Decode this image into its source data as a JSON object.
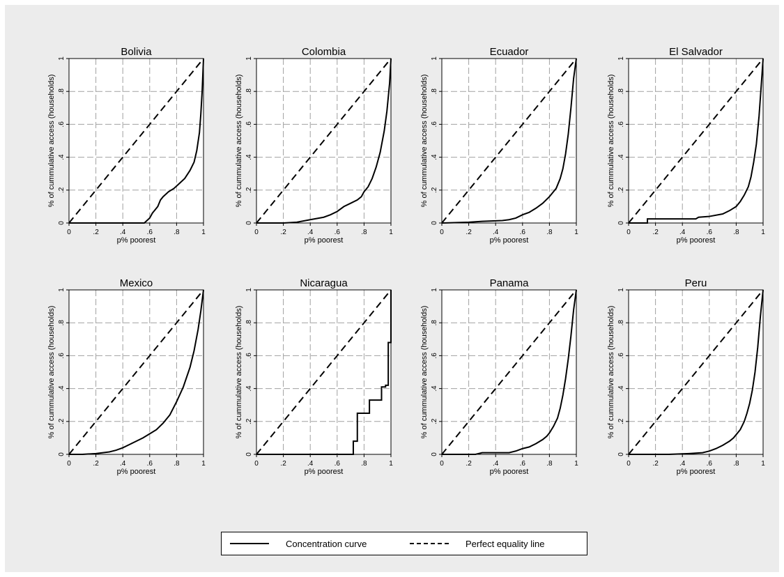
{
  "colors": {
    "frame": "#ececec",
    "plot_bg": "#ffffff",
    "line": "#000000",
    "grid": "#a0a0a0"
  },
  "legend": {
    "items": [
      {
        "label": "Concentration curve",
        "style": "solid"
      },
      {
        "label": "Perfect equality line",
        "style": "dashed"
      }
    ]
  },
  "chart_data": [
    {
      "type": "line",
      "title": "Bolivia",
      "xlabel": "p% poorest",
      "ylabel": "% of cummulative access (households)",
      "xlim": [
        0,
        1
      ],
      "ylim": [
        0,
        1
      ],
      "grid": true,
      "xticks": [
        "0",
        ".2",
        ".4",
        ".6",
        ".8",
        "1"
      ],
      "yticks": [
        "0",
        ".2",
        ".4",
        ".6",
        ".8",
        "1"
      ],
      "series": [
        {
          "style": "dashed",
          "x": [
            0,
            1
          ],
          "y": [
            0,
            1
          ]
        },
        {
          "style": "solid",
          "step": false,
          "x": [
            0,
            0.56,
            0.6,
            0.62,
            0.64,
            0.66,
            0.68,
            0.7,
            0.74,
            0.78,
            0.82,
            0.86,
            0.9,
            0.93,
            0.95,
            0.97,
            0.98,
            0.99,
            1.0
          ],
          "y": [
            0,
            0,
            0.03,
            0.06,
            0.08,
            0.1,
            0.14,
            0.16,
            0.19,
            0.21,
            0.24,
            0.27,
            0.32,
            0.37,
            0.44,
            0.55,
            0.66,
            0.8,
            1.0
          ]
        }
      ]
    },
    {
      "type": "line",
      "title": "Colombia",
      "xlabel": "p% poorest",
      "ylabel": "% of cummulative access (households)",
      "xlim": [
        0,
        1
      ],
      "ylim": [
        0,
        1
      ],
      "grid": true,
      "xticks": [
        "0",
        ".2",
        ".4",
        ".6",
        ".8",
        "1"
      ],
      "yticks": [
        "0",
        ".2",
        ".4",
        ".6",
        ".8",
        "1"
      ],
      "series": [
        {
          "style": "dashed",
          "x": [
            0,
            1
          ],
          "y": [
            0,
            1
          ]
        },
        {
          "style": "solid",
          "step": false,
          "x": [
            0,
            0.2,
            0.3,
            0.4,
            0.5,
            0.55,
            0.6,
            0.65,
            0.7,
            0.75,
            0.78,
            0.8,
            0.83,
            0.86,
            0.89,
            0.92,
            0.95,
            0.97,
            0.99,
            1.0
          ],
          "y": [
            0,
            0,
            0.005,
            0.02,
            0.035,
            0.05,
            0.07,
            0.1,
            0.12,
            0.14,
            0.16,
            0.19,
            0.22,
            0.27,
            0.34,
            0.43,
            0.56,
            0.68,
            0.85,
            1.0
          ]
        }
      ]
    },
    {
      "type": "line",
      "title": "Ecuador",
      "xlabel": "p% poorest",
      "ylabel": "% of cummulative access (households)",
      "xlim": [
        0,
        1
      ],
      "ylim": [
        0,
        1
      ],
      "grid": true,
      "xticks": [
        "0",
        ".2",
        ".4",
        ".6",
        ".8",
        "1"
      ],
      "yticks": [
        "0",
        ".2",
        ".4",
        ".6",
        ".8",
        "1"
      ],
      "series": [
        {
          "style": "dashed",
          "x": [
            0,
            1
          ],
          "y": [
            0,
            1
          ]
        },
        {
          "style": "solid",
          "step": false,
          "x": [
            0,
            0.2,
            0.3,
            0.45,
            0.5,
            0.55,
            0.6,
            0.65,
            0.7,
            0.75,
            0.8,
            0.83,
            0.85,
            0.88,
            0.9,
            0.92,
            0.94,
            0.96,
            0.98,
            1.0
          ],
          "y": [
            0,
            0.005,
            0.01,
            0.015,
            0.02,
            0.03,
            0.05,
            0.065,
            0.09,
            0.12,
            0.16,
            0.19,
            0.21,
            0.27,
            0.33,
            0.42,
            0.54,
            0.7,
            0.88,
            1.0
          ]
        }
      ]
    },
    {
      "type": "line",
      "title": "El Salvador",
      "xlabel": "p% poorest",
      "ylabel": "% of cummulative access (households)",
      "xlim": [
        0,
        1
      ],
      "ylim": [
        0,
        1
      ],
      "grid": true,
      "xticks": [
        "0",
        ".2",
        ".4",
        ".6",
        ".8",
        "1"
      ],
      "yticks": [
        "0",
        ".2",
        ".4",
        ".6",
        ".8",
        "1"
      ],
      "series": [
        {
          "style": "dashed",
          "x": [
            0,
            1
          ],
          "y": [
            0,
            1
          ]
        },
        {
          "style": "solid",
          "step": false,
          "x": [
            0,
            0.14,
            0.14,
            0.5,
            0.52,
            0.6,
            0.7,
            0.75,
            0.8,
            0.83,
            0.86,
            0.89,
            0.91,
            0.93,
            0.95,
            0.97,
            0.99,
            1.0
          ],
          "y": [
            0,
            0,
            0.025,
            0.025,
            0.035,
            0.04,
            0.055,
            0.075,
            0.1,
            0.13,
            0.17,
            0.22,
            0.28,
            0.37,
            0.48,
            0.65,
            0.88,
            1.0
          ]
        }
      ]
    },
    {
      "type": "line",
      "title": "Mexico",
      "xlabel": "p% poorest",
      "ylabel": "% of cummulative access (households)",
      "xlim": [
        0,
        1
      ],
      "ylim": [
        0,
        1
      ],
      "grid": true,
      "xticks": [
        "0",
        ".2",
        ".4",
        ".6",
        ".8",
        "1"
      ],
      "yticks": [
        "0",
        ".2",
        ".4",
        ".6",
        ".8",
        "1"
      ],
      "series": [
        {
          "style": "dashed",
          "x": [
            0,
            1
          ],
          "y": [
            0,
            1
          ]
        },
        {
          "style": "solid",
          "step": false,
          "x": [
            0,
            0.1,
            0.2,
            0.3,
            0.35,
            0.4,
            0.45,
            0.5,
            0.55,
            0.6,
            0.65,
            0.7,
            0.75,
            0.8,
            0.85,
            0.9,
            0.93,
            0.96,
            0.98,
            1.0
          ],
          "y": [
            0,
            0,
            0.005,
            0.015,
            0.025,
            0.04,
            0.06,
            0.08,
            0.1,
            0.125,
            0.15,
            0.19,
            0.24,
            0.32,
            0.41,
            0.53,
            0.63,
            0.76,
            0.87,
            1.0
          ]
        }
      ]
    },
    {
      "type": "line",
      "title": "Nicaragua",
      "xlabel": "p% poorest",
      "ylabel": "% of cummulative access (households)",
      "xlim": [
        0,
        1
      ],
      "ylim": [
        0,
        1
      ],
      "grid": true,
      "xticks": [
        "0",
        ".2",
        ".4",
        ".6",
        ".8",
        "1"
      ],
      "yticks": [
        "0",
        ".2",
        ".4",
        ".6",
        ".8",
        "1"
      ],
      "series": [
        {
          "style": "dashed",
          "x": [
            0,
            1
          ],
          "y": [
            0,
            1
          ]
        },
        {
          "style": "solid",
          "step": true,
          "x": [
            0,
            0.72,
            0.75,
            0.8,
            0.84,
            0.93,
            0.96,
            0.98,
            1.0
          ],
          "y": [
            0,
            0.08,
            0.25,
            0.25,
            0.33,
            0.41,
            0.42,
            0.68,
            1.0
          ]
        }
      ]
    },
    {
      "type": "line",
      "title": "Panama",
      "xlabel": "p% poorest",
      "ylabel": "% of cummulative access (households)",
      "xlim": [
        0,
        1
      ],
      "ylim": [
        0,
        1
      ],
      "grid": true,
      "xticks": [
        "0",
        ".2",
        ".4",
        ".6",
        ".8",
        "1"
      ],
      "yticks": [
        "0",
        ".2",
        ".4",
        ".6",
        ".8",
        "1"
      ],
      "series": [
        {
          "style": "dashed",
          "x": [
            0,
            1
          ],
          "y": [
            0,
            1
          ]
        },
        {
          "style": "solid",
          "step": false,
          "x": [
            0,
            0.25,
            0.3,
            0.5,
            0.55,
            0.6,
            0.65,
            0.7,
            0.75,
            0.78,
            0.8,
            0.83,
            0.86,
            0.88,
            0.9,
            0.92,
            0.94,
            0.96,
            0.98,
            1.0
          ],
          "y": [
            0,
            0,
            0.01,
            0.01,
            0.02,
            0.035,
            0.045,
            0.065,
            0.09,
            0.11,
            0.13,
            0.17,
            0.22,
            0.28,
            0.36,
            0.46,
            0.58,
            0.72,
            0.88,
            1.0
          ]
        }
      ]
    },
    {
      "type": "line",
      "title": "Peru",
      "xlabel": "p% poorest",
      "ylabel": "% of cummulative access (households)",
      "xlim": [
        0,
        1
      ],
      "ylim": [
        0,
        1
      ],
      "grid": true,
      "xticks": [
        "0",
        ".2",
        ".4",
        ".6",
        ".8",
        "1"
      ],
      "yticks": [
        "0",
        ".2",
        ".4",
        ".6",
        ".8",
        "1"
      ],
      "series": [
        {
          "style": "dashed",
          "x": [
            0,
            1
          ],
          "y": [
            0,
            1
          ]
        },
        {
          "style": "solid",
          "step": false,
          "x": [
            0,
            0.3,
            0.45,
            0.55,
            0.6,
            0.65,
            0.7,
            0.75,
            0.78,
            0.8,
            0.83,
            0.86,
            0.88,
            0.9,
            0.92,
            0.94,
            0.96,
            0.98,
            1.0
          ],
          "y": [
            0,
            0,
            0.005,
            0.01,
            0.02,
            0.035,
            0.055,
            0.08,
            0.1,
            0.12,
            0.15,
            0.2,
            0.25,
            0.31,
            0.39,
            0.5,
            0.65,
            0.84,
            1.0
          ]
        }
      ]
    }
  ]
}
